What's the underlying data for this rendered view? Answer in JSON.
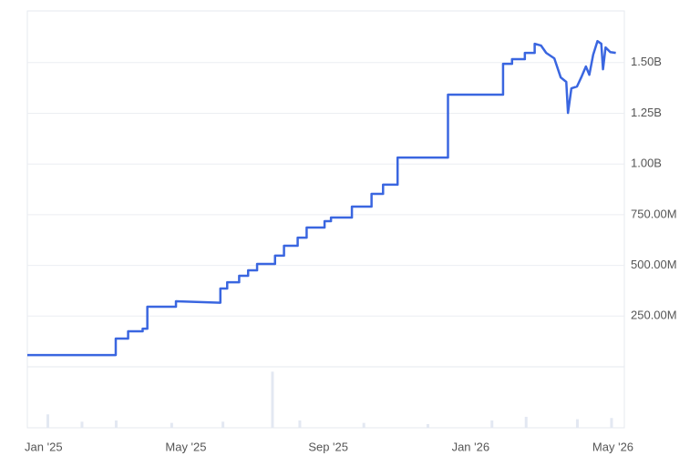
{
  "chart_data": {
    "type": "line",
    "x": [
      2024.962,
      2025.169,
      2025.169,
      2025.198,
      2025.198,
      2025.232,
      2025.232,
      2025.243,
      2025.243,
      2025.31,
      2025.31,
      2025.414,
      2025.414,
      2025.43,
      2025.43,
      2025.458,
      2025.458,
      2025.479,
      2025.479,
      2025.5,
      2025.5,
      2025.542,
      2025.542,
      2025.563,
      2025.563,
      2025.595,
      2025.595,
      2025.616,
      2025.616,
      2025.658,
      2025.658,
      2025.673,
      2025.673,
      2025.722,
      2025.722,
      2025.768,
      2025.768,
      2025.795,
      2025.795,
      2025.829,
      2025.829,
      2025.947,
      2025.947,
      2026.076,
      2026.076,
      2026.097,
      2026.097,
      2026.127,
      2026.127,
      2026.15,
      2026.15,
      2026.165,
      2026.177,
      2026.196,
      2026.211,
      2026.224,
      2026.228,
      2026.236,
      2026.249,
      2026.259,
      2026.27,
      2026.278,
      2026.287,
      2026.297,
      2026.306,
      2026.31,
      2026.316,
      2026.327,
      2026.34
    ],
    "series": [
      {
        "color": "#3a66e0",
        "values": [
          58000000,
          58000000,
          139000000,
          139000000,
          175000000,
          175000000,
          188000000,
          188000000,
          296000000,
          296000000,
          323000000,
          316000000,
          386000000,
          386000000,
          417000000,
          417000000,
          449000000,
          449000000,
          476000000,
          476000000,
          507000000,
          507000000,
          548000000,
          548000000,
          597000000,
          597000000,
          637000000,
          637000000,
          687000000,
          687000000,
          718000000,
          718000000,
          736000000,
          736000000,
          790000000,
          790000000,
          853000000,
          853000000,
          898000000,
          898000000,
          1032000000,
          1032000000,
          1342000000,
          1342000000,
          1494000000,
          1494000000,
          1517000000,
          1517000000,
          1548000000,
          1548000000,
          1593000000,
          1584000000,
          1548000000,
          1521000000,
          1427000000,
          1405000000,
          1252000000,
          1373000000,
          1382000000,
          1427000000,
          1481000000,
          1440000000,
          1539000000,
          1606000000,
          1593000000,
          1467000000,
          1575000000,
          1552000000,
          1548000000
        ]
      }
    ],
    "volume": {
      "color": "#e3e8f2",
      "axis": "y2",
      "x": [
        2025.01,
        2025.09,
        2025.17,
        2025.3,
        2025.42,
        2025.536,
        2025.6,
        2025.75,
        2025.9,
        2026.05,
        2026.13,
        2026.25,
        2026.33
      ],
      "values": [
        22,
        10,
        12,
        8,
        10,
        92,
        12,
        8,
        6,
        12,
        18,
        14,
        16
      ]
    },
    "xlim": [
      2024.962,
      2026.36
    ],
    "xticks": [
      {
        "value": 2025.0,
        "label": "Jan '25"
      },
      {
        "value": 2025.3333,
        "label": "May '25"
      },
      {
        "value": 2025.6667,
        "label": "Sep '25"
      },
      {
        "value": 2026.0,
        "label": "Jan '26"
      },
      {
        "value": 2026.3333,
        "label": "May '26"
      }
    ],
    "ylim": [
      0,
      1755000000
    ],
    "yticks": [
      {
        "value": 250000000,
        "label": "250.00M"
      },
      {
        "value": 500000000,
        "label": "500.00M"
      },
      {
        "value": 750000000,
        "label": "750.00M"
      },
      {
        "value": 1000000000,
        "label": "1.00B"
      },
      {
        "value": 1250000000,
        "label": "1.25B"
      },
      {
        "value": 1500000000,
        "label": "1.50B"
      }
    ],
    "y2lim": [
      0,
      100
    ],
    "grid": true
  }
}
